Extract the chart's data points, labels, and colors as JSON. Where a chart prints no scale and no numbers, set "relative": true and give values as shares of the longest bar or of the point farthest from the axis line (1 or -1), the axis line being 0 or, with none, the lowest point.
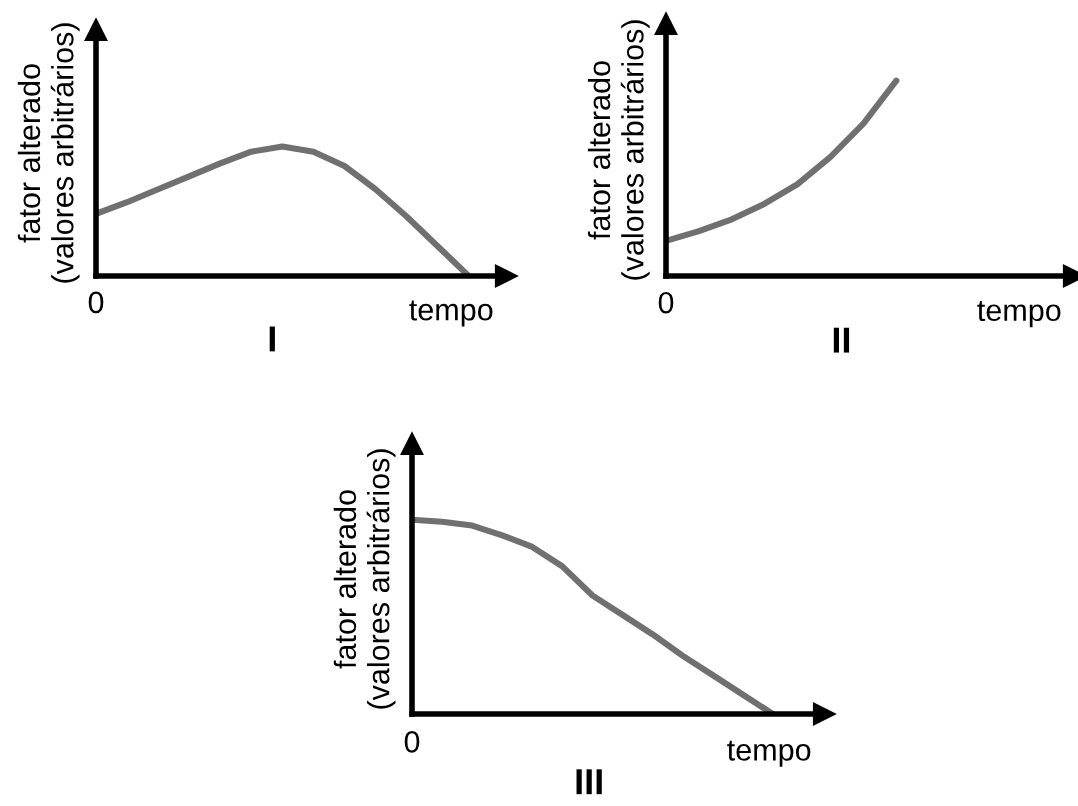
{
  "chart_data": [
    {
      "type": "line",
      "title": "I",
      "xlabel": "tempo",
      "ylabel": "fator alterado\n(valores arbitrários)",
      "relative": true,
      "grid": false,
      "annotations": [
        "0"
      ],
      "categories": [
        null,
        null,
        null,
        null,
        null,
        null,
        null,
        null,
        null,
        null,
        null,
        null,
        null,
        null
      ],
      "series": [
        {
          "color": "#707070",
          "values": [
            0.48,
            0.57,
            0.67,
            0.77,
            0.87,
            0.96,
            1,
            0.96,
            0.85,
            0.67,
            0.46,
            0.23,
            0,
            null
          ]
        }
      ]
    },
    {
      "type": "line",
      "title": "II",
      "xlabel": "tempo",
      "ylabel": "fator alterado\n(valores arbitrários)",
      "relative": true,
      "grid": false,
      "annotations": [
        "0"
      ],
      "categories": [
        null,
        null,
        null,
        null,
        null,
        null,
        null,
        null,
        null,
        null,
        null,
        null,
        null
      ],
      "series": [
        {
          "color": "#707070",
          "values": [
            0.18,
            0.23,
            0.29,
            0.37,
            0.47,
            0.61,
            0.78,
            1,
            null,
            null,
            null,
            null,
            null
          ]
        }
      ]
    },
    {
      "type": "line",
      "title": "III",
      "xlabel": "tempo",
      "ylabel": "fator alterado\n(valores arbitrários)",
      "relative": true,
      "grid": false,
      "annotations": [
        "0"
      ],
      "categories": [
        null,
        null,
        null,
        null,
        null,
        null,
        null,
        null,
        null,
        null,
        null,
        null,
        null,
        null
      ],
      "series": [
        {
          "color": "#707070",
          "values": [
            1,
            0.99,
            0.97,
            0.92,
            0.86,
            0.76,
            0.61,
            0.51,
            0.41,
            0.3,
            0.2,
            0.1,
            0,
            null
          ]
        }
      ]
    }
  ]
}
